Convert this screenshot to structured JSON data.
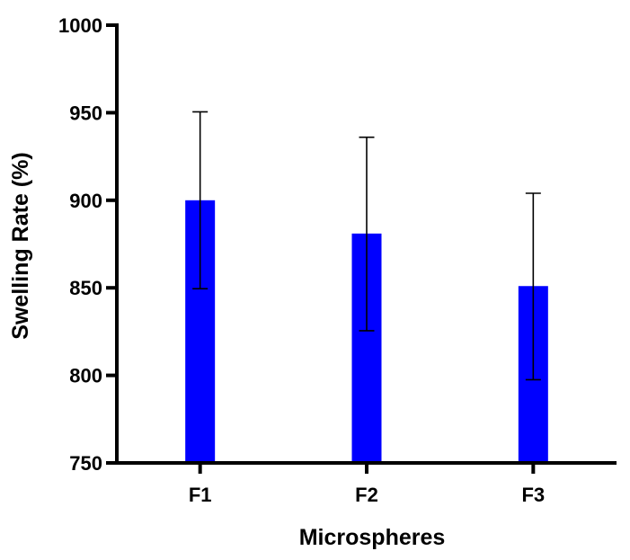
{
  "chart_data": {
    "type": "bar",
    "title": "",
    "xlabel": "Microspheres",
    "ylabel": "Swelling Rate (%)",
    "categories": [
      "F1",
      "F2",
      "F3"
    ],
    "values": [
      900,
      881,
      851
    ],
    "error_upper": [
      950.5,
      936,
      904
    ],
    "error_lower": [
      849.5,
      825.5,
      797.5
    ],
    "ylim": [
      750,
      1000
    ],
    "yticks": [
      750,
      800,
      850,
      900,
      950,
      1000
    ],
    "ytick_labels": [
      "750",
      "800",
      "850",
      "900",
      "950",
      "1000"
    ],
    "grid": false,
    "legend": "none",
    "bar_color": "#0000FF",
    "axis_color": "#000000"
  }
}
